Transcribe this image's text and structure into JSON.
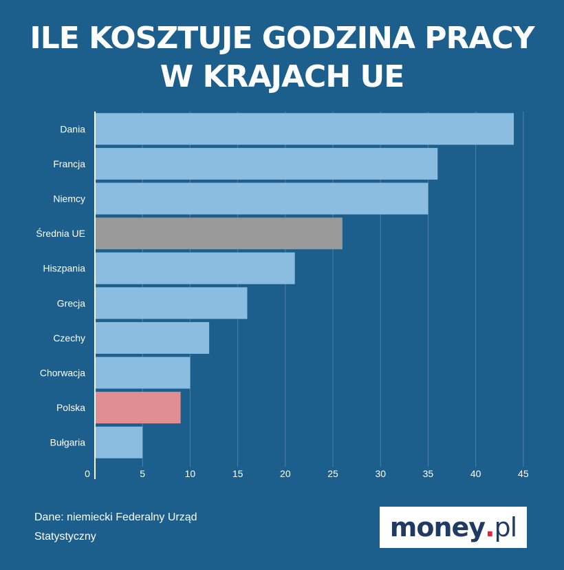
{
  "title": {
    "line1": "ILE KOSZTUJE GODZINA PRACY",
    "line2": "W KRAJACH UE"
  },
  "source": {
    "line1": "Dane: niemiecki Federalny Urząd",
    "line2": "Statystyczny"
  },
  "logo": {
    "main": "money",
    "dot": ".",
    "suffix": "pl"
  },
  "colors": {
    "background": "#1d5f8c",
    "bar_default": "#8bbde0",
    "bar_eu_average": "#999999",
    "bar_poland": "#e08e92",
    "gridline": "#4a84ad",
    "axis": "#ffffff",
    "text": "#ffffff"
  },
  "chart_data": {
    "type": "bar",
    "orientation": "horizontal",
    "title": "ILE KOSZTUJE GODZINA PRACY W KRAJACH UE",
    "categories": [
      "Dania",
      "Francja",
      "Niemcy",
      "Średnia UE",
      "Hiszpania",
      "Grecja",
      "Czechy",
      "Chorwacja",
      "Polska",
      "Bułgaria"
    ],
    "values": [
      44.0,
      36.0,
      35.0,
      26.0,
      21.0,
      16.0,
      12.0,
      10.0,
      9.0,
      5.0
    ],
    "highlight": {
      "Średnia UE": "#999999",
      "Polska": "#e08e92"
    },
    "xlim": [
      0,
      45
    ],
    "xticks": [
      0,
      5,
      10,
      15,
      20,
      25,
      30,
      35,
      40,
      45
    ],
    "xlabel": "",
    "ylabel": "",
    "grid": true
  }
}
